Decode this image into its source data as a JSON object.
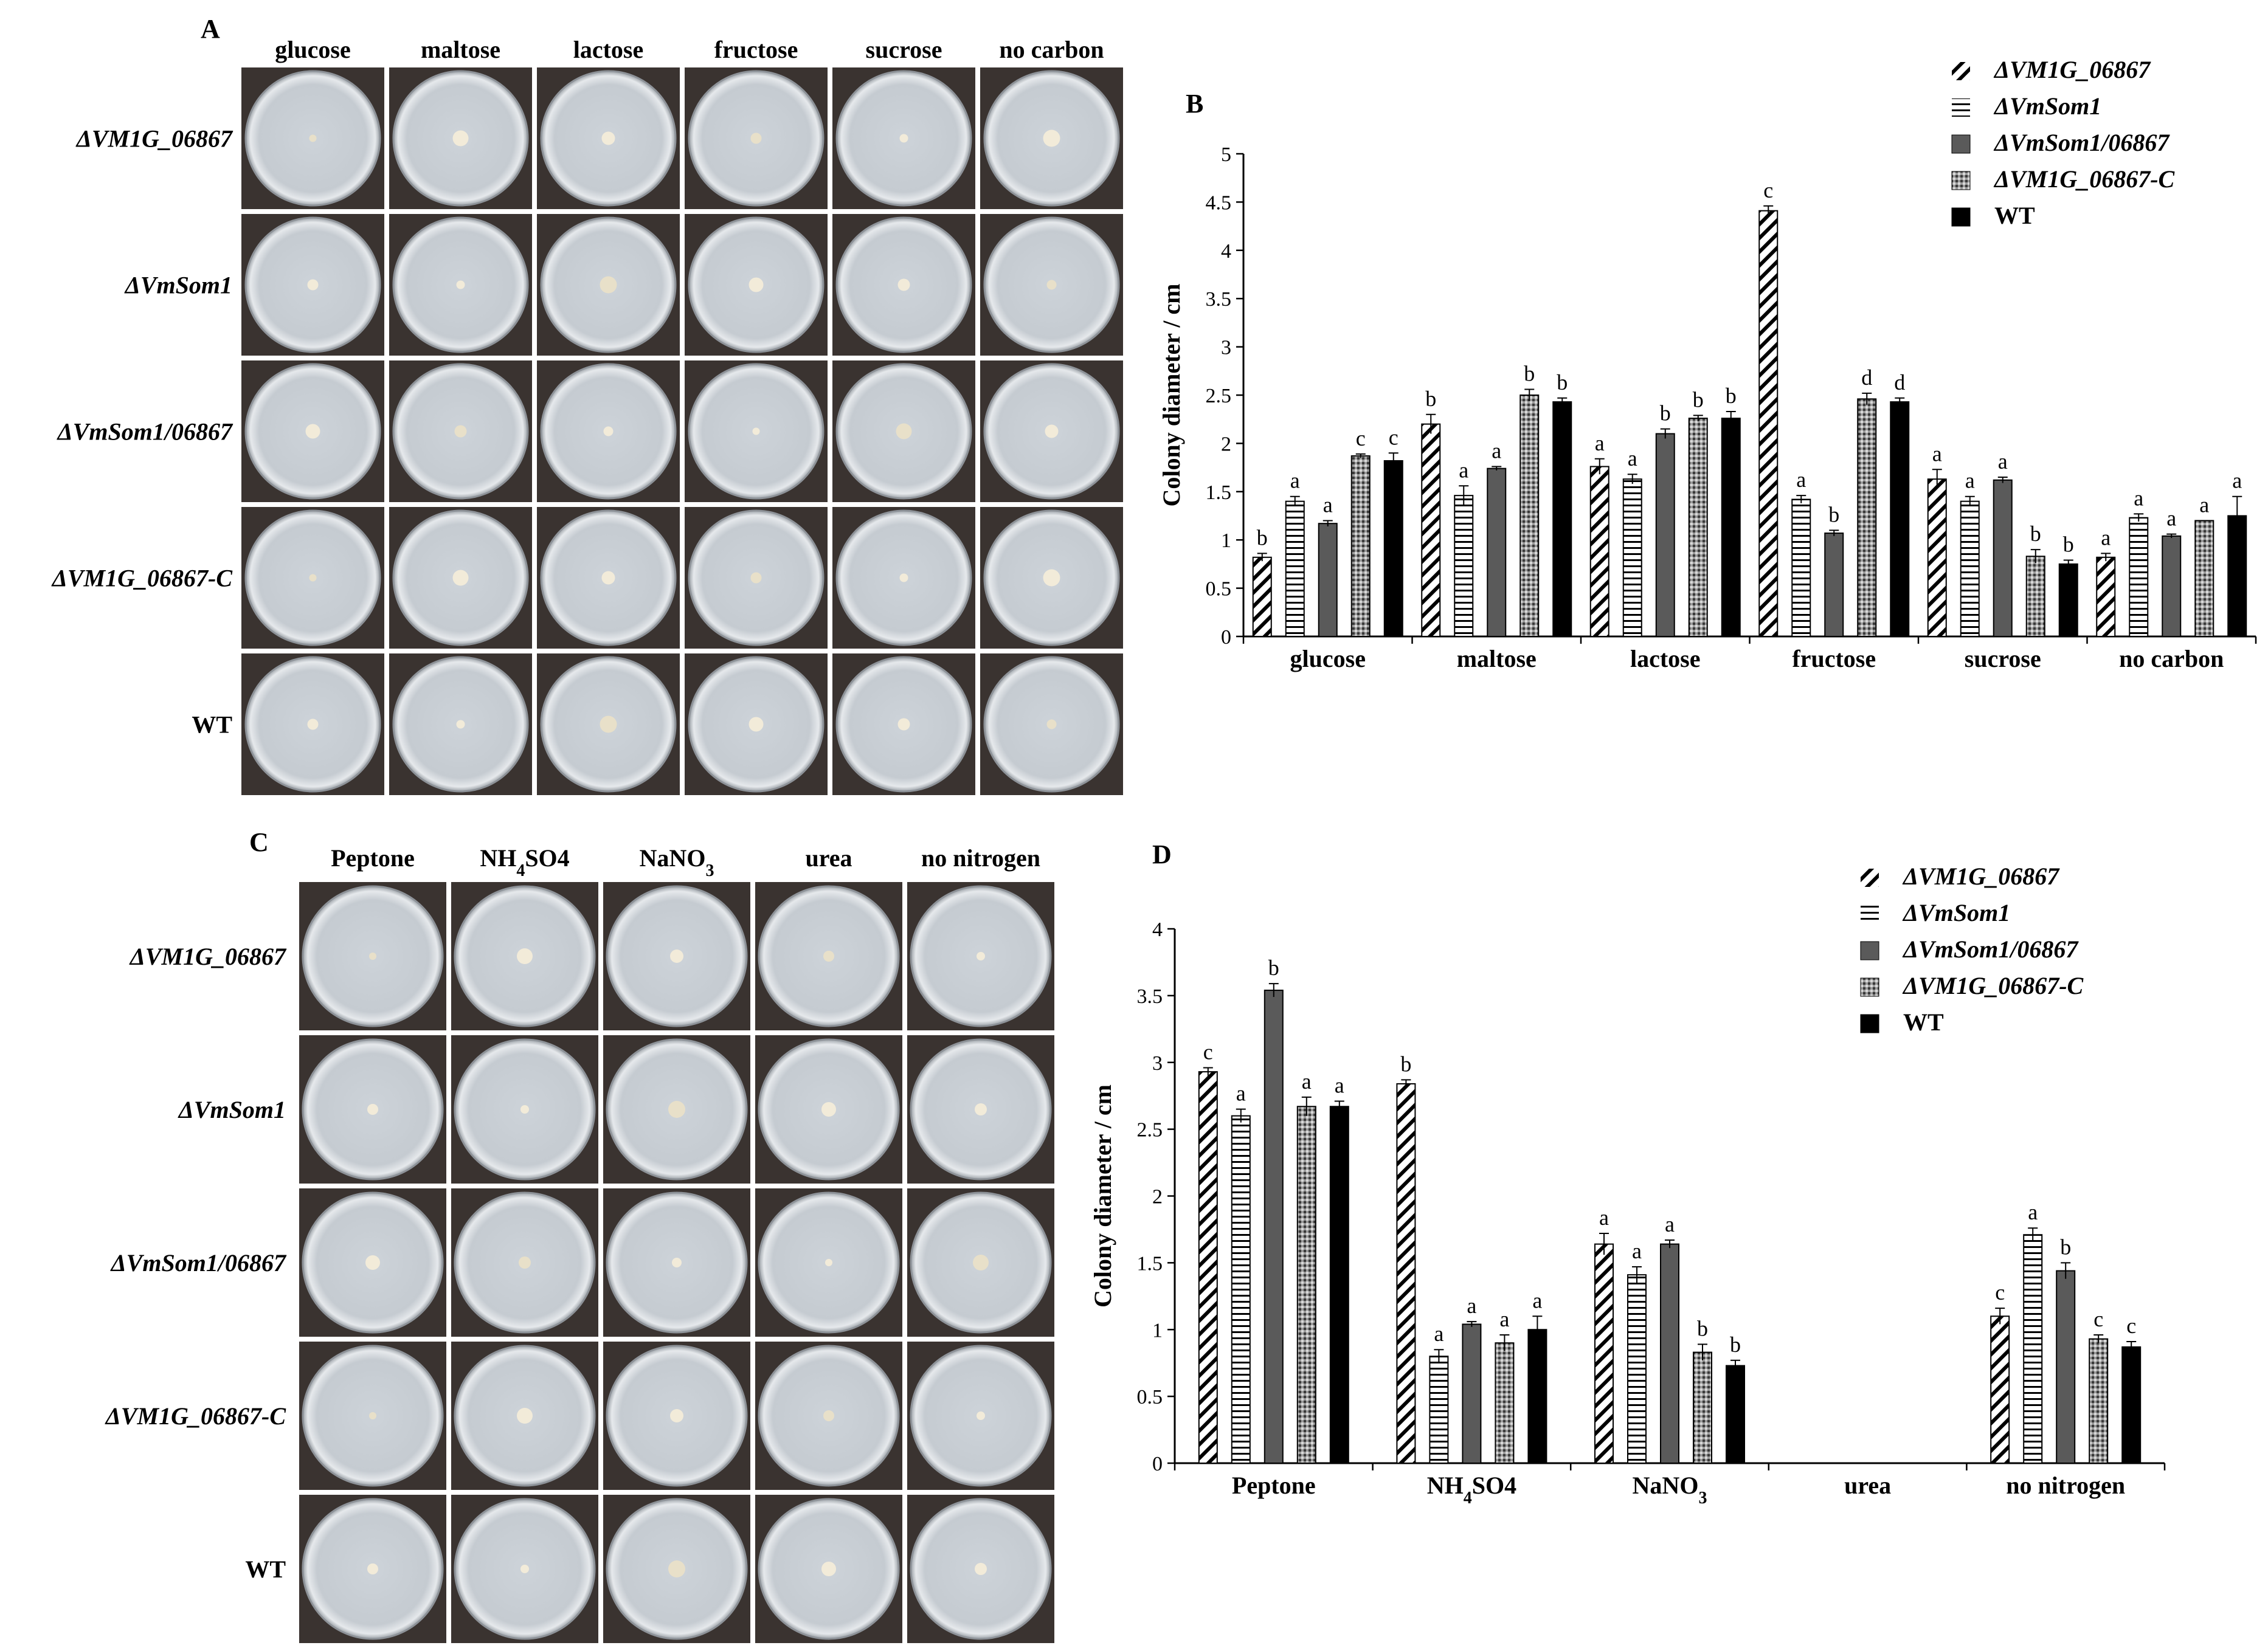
{
  "panel_labels": {
    "a": "A",
    "b": "B",
    "c": "C",
    "d": "D"
  },
  "panel_a": {
    "columns": [
      "glucose",
      "maltose",
      "lactose",
      "fructose",
      "sucrose",
      "no carbon"
    ],
    "rows": [
      "ΔVM1G_06867",
      "ΔVmSom1",
      "ΔVmSom1/06867",
      "ΔVM1G_06867-C",
      "WT"
    ]
  },
  "panel_c": {
    "columns": [
      "Peptone",
      "NH4SO4",
      "NaNO3",
      "urea",
      "no nitrogen"
    ],
    "rows": [
      "ΔVM1G_06867",
      "ΔVmSom1",
      "ΔVmSom1/06867",
      "ΔVM1G_06867-C",
      "WT"
    ]
  },
  "colors": {
    "dark_gray": "#5a5a5a",
    "black": "#000000",
    "dish_outer": "#b4b8bc",
    "dish_inner": "#d4d8dc",
    "background_photo": "#3a3330"
  },
  "chart_data": [
    {
      "type": "bar",
      "panel": "B",
      "ylabel": "Colony diameter / cm",
      "xlabel": "",
      "ylim": [
        0,
        5
      ],
      "ytick_labels": [
        "0",
        "0.5",
        "1",
        "1.5",
        "2",
        "2.5",
        "3",
        "3.5",
        "4",
        "4.5",
        "5"
      ],
      "categories": [
        "glucose",
        "maltose",
        "lactose",
        "fructose",
        "sucrose",
        "no carbon"
      ],
      "series": [
        {
          "name": "ΔVM1G_06867",
          "pattern": "diag",
          "values": [
            0.82,
            2.2,
            1.76,
            4.41,
            1.63,
            0.82
          ],
          "errors": [
            0.04,
            0.1,
            0.08,
            0.05,
            0.1,
            0.04
          ],
          "letters": [
            "b",
            "b",
            "a",
            "c",
            "a",
            "a"
          ]
        },
        {
          "name": "ΔVmSom1",
          "pattern": "horiz",
          "values": [
            1.4,
            1.46,
            1.63,
            1.42,
            1.4,
            1.23
          ],
          "errors": [
            0.05,
            0.1,
            0.05,
            0.04,
            0.05,
            0.04
          ],
          "letters": [
            "a",
            "a",
            "a",
            "a",
            "a",
            "a"
          ]
        },
        {
          "name": "ΔVmSom1/06867",
          "pattern": "gray",
          "values": [
            1.17,
            1.74,
            2.1,
            1.07,
            1.62,
            1.04
          ],
          "errors": [
            0.03,
            0.02,
            0.05,
            0.03,
            0.03,
            0.02
          ],
          "letters": [
            "a",
            "a",
            "b",
            "b",
            "a",
            "a"
          ]
        },
        {
          "name": "ΔVM1G_06867-C",
          "pattern": "dots",
          "values": [
            1.87,
            2.5,
            2.26,
            2.46,
            0.83,
            1.2
          ],
          "errors": [
            0.02,
            0.06,
            0.03,
            0.06,
            0.07,
            0.0
          ],
          "letters": [
            "c",
            "b",
            "b",
            "d",
            "b",
            "a"
          ]
        },
        {
          "name": "WT",
          "pattern": "black",
          "values": [
            1.82,
            2.43,
            2.26,
            2.43,
            0.75,
            1.25
          ],
          "errors": [
            0.08,
            0.04,
            0.07,
            0.04,
            0.04,
            0.2
          ],
          "letters": [
            "c",
            "b",
            "b",
            "d",
            "b",
            "a"
          ]
        }
      ]
    },
    {
      "type": "bar",
      "panel": "D",
      "ylabel": "Colony diameter / cm",
      "xlabel": "",
      "ylim": [
        0,
        4
      ],
      "ytick_labels": [
        "0",
        "0.5",
        "1",
        "1.5",
        "2",
        "2.5",
        "3",
        "3.5",
        "4"
      ],
      "categories": [
        "Peptone",
        "NH4SO4",
        "NaNO3",
        "urea",
        "no nitrogen"
      ],
      "series": [
        {
          "name": "ΔVM1G_06867",
          "pattern": "diag",
          "values": [
            2.93,
            2.84,
            1.64,
            null,
            1.1
          ],
          "errors": [
            0.03,
            0.03,
            0.08,
            0,
            0.06
          ],
          "letters": [
            "c",
            "b",
            "a",
            "",
            "c"
          ]
        },
        {
          "name": "ΔVmSom1",
          "pattern": "horiz",
          "values": [
            2.6,
            0.8,
            1.41,
            null,
            1.71
          ],
          "errors": [
            0.05,
            0.05,
            0.06,
            0,
            0.05
          ],
          "letters": [
            "a",
            "a",
            "a",
            "",
            "a"
          ]
        },
        {
          "name": "ΔVmSom1/06867",
          "pattern": "gray",
          "values": [
            3.54,
            1.04,
            1.64,
            null,
            1.44
          ],
          "errors": [
            0.05,
            0.02,
            0.03,
            0,
            0.06
          ],
          "letters": [
            "b",
            "a",
            "a",
            "",
            "b"
          ]
        },
        {
          "name": "ΔVM1G_06867-C",
          "pattern": "dots",
          "values": [
            2.67,
            0.9,
            0.83,
            null,
            0.93
          ],
          "errors": [
            0.07,
            0.06,
            0.06,
            0,
            0.03
          ],
          "letters": [
            "a",
            "a",
            "b",
            "",
            "c"
          ]
        },
        {
          "name": "WT",
          "pattern": "black",
          "values": [
            2.67,
            1.0,
            0.73,
            null,
            0.87
          ],
          "errors": [
            0.04,
            0.1,
            0.04,
            0,
            0.04
          ],
          "letters": [
            "a",
            "a",
            "b",
            "",
            "c"
          ]
        }
      ]
    }
  ]
}
